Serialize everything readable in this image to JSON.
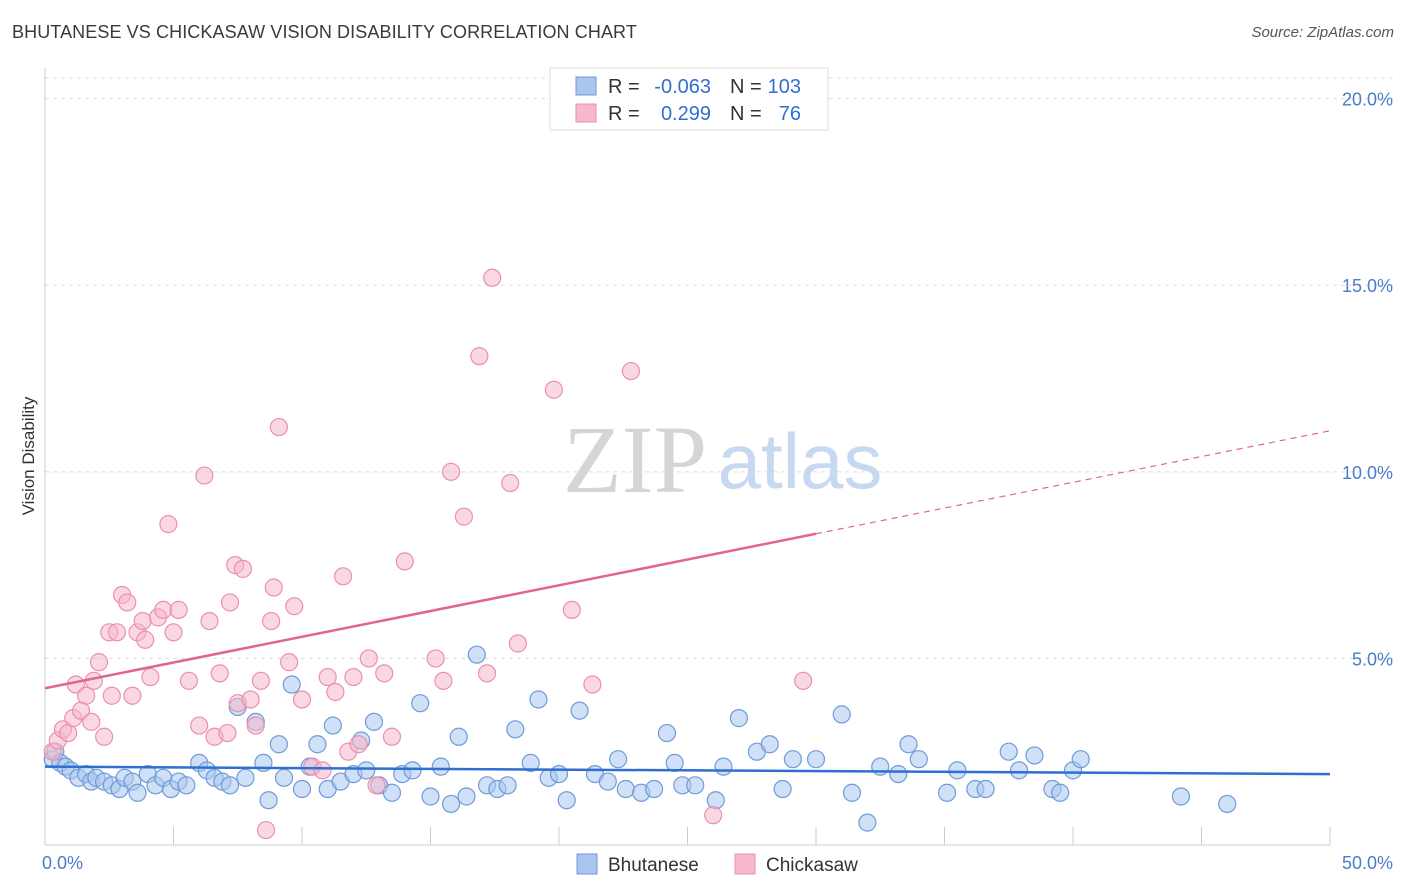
{
  "title": "BHUTANESE VS CHICKASAW VISION DISABILITY CORRELATION CHART",
  "source": "Source: ZipAtlas.com",
  "watermark": {
    "zip": "ZIP",
    "atlas": "atlas"
  },
  "colors": {
    "blue_fill": "#a9c6ef",
    "blue_stroke": "#6f9bd9",
    "blue_line": "#2f6fd1",
    "pink_fill": "#f6b8cb",
    "pink_stroke": "#ec8fae",
    "pink_line": "#e0668f",
    "tick_text": "#4a7ec9",
    "grid": "#dddddd"
  },
  "legend": {
    "rows": [
      {
        "r_label": "R =",
        "r_value": "-0.063",
        "n_label": "N =",
        "n_value": "103"
      },
      {
        "r_label": "R =",
        "r_value": "0.299",
        "n_label": "N =",
        "n_value": "76"
      }
    ]
  },
  "chart_data": {
    "type": "scatter",
    "title": "BHUTANESE VS CHICKASAW VISION DISABILITY CORRELATION CHART",
    "xlabel": "",
    "ylabel": "Vision Disability",
    "xlim": [
      0,
      50
    ],
    "ylim": [
      0,
      20.5
    ],
    "x_tick_labels": [
      "0.0%",
      "50.0%"
    ],
    "y_ticks": [
      5,
      10,
      15,
      20
    ],
    "y_tick_labels": [
      "5.0%",
      "10.0%",
      "15.0%",
      "20.0%"
    ],
    "grid": true,
    "legend_position": "bottom-center",
    "series": [
      {
        "name": "Bhutanese",
        "r": -0.063,
        "n": 103,
        "trend": {
          "x0": 0,
          "y0": 2.1,
          "x1": 50,
          "y1": 1.9,
          "dashed_from": null
        },
        "points": [
          [
            0.3,
            2.3
          ],
          [
            0.4,
            2.5
          ],
          [
            0.6,
            2.2
          ],
          [
            0.8,
            2.1
          ],
          [
            1.0,
            2.0
          ],
          [
            1.3,
            1.8
          ],
          [
            1.6,
            1.9
          ],
          [
            1.8,
            1.7
          ],
          [
            2.0,
            1.8
          ],
          [
            2.3,
            1.7
          ],
          [
            2.6,
            1.6
          ],
          [
            2.9,
            1.5
          ],
          [
            3.1,
            1.8
          ],
          [
            3.4,
            1.7
          ],
          [
            3.6,
            1.4
          ],
          [
            4.0,
            1.9
          ],
          [
            4.3,
            1.6
          ],
          [
            4.6,
            1.8
          ],
          [
            4.9,
            1.5
          ],
          [
            5.2,
            1.7
          ],
          [
            5.5,
            1.6
          ],
          [
            6.0,
            2.2
          ],
          [
            6.3,
            2.0
          ],
          [
            6.6,
            1.8
          ],
          [
            6.9,
            1.7
          ],
          [
            7.2,
            1.6
          ],
          [
            7.5,
            3.7
          ],
          [
            7.8,
            1.8
          ],
          [
            8.2,
            3.3
          ],
          [
            8.5,
            2.2
          ],
          [
            8.7,
            1.2
          ],
          [
            9.1,
            2.7
          ],
          [
            9.3,
            1.8
          ],
          [
            9.6,
            4.3
          ],
          [
            10.0,
            1.5
          ],
          [
            10.3,
            2.1
          ],
          [
            10.6,
            2.7
          ],
          [
            11.0,
            1.5
          ],
          [
            11.2,
            3.2
          ],
          [
            11.5,
            1.7
          ],
          [
            12.0,
            1.9
          ],
          [
            12.3,
            2.8
          ],
          [
            12.5,
            2.0
          ],
          [
            12.8,
            3.3
          ],
          [
            13.0,
            1.6
          ],
          [
            13.5,
            1.4
          ],
          [
            13.9,
            1.9
          ],
          [
            14.3,
            2.0
          ],
          [
            14.6,
            3.8
          ],
          [
            15.0,
            1.3
          ],
          [
            15.4,
            2.1
          ],
          [
            15.8,
            1.1
          ],
          [
            16.1,
            2.9
          ],
          [
            16.4,
            1.3
          ],
          [
            16.8,
            5.1
          ],
          [
            17.2,
            1.6
          ],
          [
            17.6,
            1.5
          ],
          [
            18.0,
            1.6
          ],
          [
            18.3,
            3.1
          ],
          [
            18.9,
            2.2
          ],
          [
            19.2,
            3.9
          ],
          [
            19.6,
            1.8
          ],
          [
            20.0,
            1.9
          ],
          [
            20.3,
            1.2
          ],
          [
            20.8,
            3.6
          ],
          [
            21.4,
            1.9
          ],
          [
            21.9,
            1.7
          ],
          [
            22.3,
            2.3
          ],
          [
            22.6,
            1.5
          ],
          [
            23.2,
            1.4
          ],
          [
            23.7,
            1.5
          ],
          [
            24.2,
            3.0
          ],
          [
            24.5,
            2.2
          ],
          [
            24.8,
            1.6
          ],
          [
            25.3,
            1.6
          ],
          [
            26.1,
            1.2
          ],
          [
            26.4,
            2.1
          ],
          [
            27.0,
            3.4
          ],
          [
            27.7,
            2.5
          ],
          [
            28.2,
            2.7
          ],
          [
            28.7,
            1.5
          ],
          [
            29.1,
            2.3
          ],
          [
            30.0,
            2.3
          ],
          [
            31.0,
            3.5
          ],
          [
            31.4,
            1.4
          ],
          [
            32.0,
            0.6
          ],
          [
            32.5,
            2.1
          ],
          [
            33.2,
            1.9
          ],
          [
            33.6,
            2.7
          ],
          [
            34.0,
            2.3
          ],
          [
            35.1,
            1.4
          ],
          [
            35.5,
            2.0
          ],
          [
            36.2,
            1.5
          ],
          [
            36.6,
            1.5
          ],
          [
            37.5,
            2.5
          ],
          [
            37.9,
            2.0
          ],
          [
            38.5,
            2.4
          ],
          [
            39.2,
            1.5
          ],
          [
            39.5,
            1.4
          ],
          [
            40.0,
            2.0
          ],
          [
            40.3,
            2.3
          ],
          [
            44.2,
            1.3
          ],
          [
            46.0,
            1.1
          ]
        ]
      },
      {
        "name": "Chickasaw",
        "r": 0.299,
        "n": 76,
        "trend": {
          "x0": 0,
          "y0": 4.2,
          "x1": 50,
          "y1": 11.1,
          "dashed_from": 30
        },
        "points": [
          [
            0.3,
            2.5
          ],
          [
            0.5,
            2.8
          ],
          [
            0.7,
            3.1
          ],
          [
            0.9,
            3.0
          ],
          [
            1.1,
            3.4
          ],
          [
            1.2,
            4.3
          ],
          [
            1.4,
            3.6
          ],
          [
            1.6,
            4.0
          ],
          [
            1.8,
            3.3
          ],
          [
            1.9,
            4.4
          ],
          [
            2.1,
            4.9
          ],
          [
            2.3,
            2.9
          ],
          [
            2.5,
            5.7
          ],
          [
            2.6,
            4.0
          ],
          [
            2.8,
            5.7
          ],
          [
            3.0,
            6.7
          ],
          [
            3.2,
            6.5
          ],
          [
            3.4,
            4.0
          ],
          [
            3.6,
            5.7
          ],
          [
            3.8,
            6.0
          ],
          [
            3.9,
            5.5
          ],
          [
            4.1,
            4.5
          ],
          [
            4.4,
            6.1
          ],
          [
            4.6,
            6.3
          ],
          [
            4.8,
            8.6
          ],
          [
            5.0,
            5.7
          ],
          [
            5.2,
            6.3
          ],
          [
            5.6,
            4.4
          ],
          [
            6.0,
            3.2
          ],
          [
            6.2,
            9.9
          ],
          [
            6.4,
            6.0
          ],
          [
            6.6,
            2.9
          ],
          [
            6.8,
            4.6
          ],
          [
            7.1,
            3.0
          ],
          [
            7.2,
            6.5
          ],
          [
            7.4,
            7.5
          ],
          [
            7.5,
            3.8
          ],
          [
            7.7,
            7.4
          ],
          [
            8.0,
            3.9
          ],
          [
            8.2,
            3.2
          ],
          [
            8.4,
            4.4
          ],
          [
            8.6,
            0.4
          ],
          [
            8.8,
            6.0
          ],
          [
            8.9,
            6.9
          ],
          [
            9.1,
            11.2
          ],
          [
            9.5,
            4.9
          ],
          [
            9.7,
            6.4
          ],
          [
            10.0,
            3.9
          ],
          [
            10.4,
            2.1
          ],
          [
            10.8,
            2.0
          ],
          [
            11.0,
            4.5
          ],
          [
            11.3,
            4.1
          ],
          [
            11.6,
            7.2
          ],
          [
            11.8,
            2.5
          ],
          [
            12.0,
            4.5
          ],
          [
            12.2,
            2.7
          ],
          [
            12.6,
            5.0
          ],
          [
            12.9,
            1.6
          ],
          [
            13.2,
            4.6
          ],
          [
            13.5,
            2.9
          ],
          [
            14.0,
            7.6
          ],
          [
            15.2,
            5.0
          ],
          [
            15.5,
            4.4
          ],
          [
            15.8,
            10.0
          ],
          [
            16.3,
            8.8
          ],
          [
            16.9,
            13.1
          ],
          [
            17.2,
            4.6
          ],
          [
            17.4,
            15.2
          ],
          [
            18.1,
            9.7
          ],
          [
            18.4,
            5.4
          ],
          [
            19.8,
            12.2
          ],
          [
            20.5,
            6.3
          ],
          [
            21.3,
            4.3
          ],
          [
            22.8,
            12.7
          ],
          [
            26.0,
            0.8
          ],
          [
            29.5,
            4.4
          ]
        ]
      }
    ]
  },
  "bottom_legend": [
    {
      "name": "Bhutanese"
    },
    {
      "name": "Chickasaw"
    }
  ]
}
